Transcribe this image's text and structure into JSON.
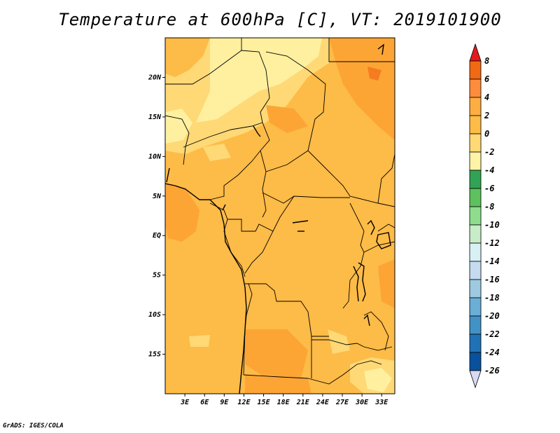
{
  "title": "Temperature at 600hPa [C], VT: 2019101900",
  "credit": "GrADS: IGES/COLA",
  "map": {
    "lon_range": [
      0,
      35
    ],
    "lat_range": [
      -20,
      25
    ],
    "lat_ticks": [
      {
        "value": 20,
        "label": "20N"
      },
      {
        "value": 15,
        "label": "15N"
      },
      {
        "value": 10,
        "label": "10N"
      },
      {
        "value": 5,
        "label": "5N"
      },
      {
        "value": 0,
        "label": "EQ"
      },
      {
        "value": -5,
        "label": "5S"
      },
      {
        "value": -10,
        "label": "10S"
      },
      {
        "value": -15,
        "label": "15S"
      }
    ],
    "lon_ticks": [
      {
        "value": 3,
        "label": "3E"
      },
      {
        "value": 6,
        "label": "6E"
      },
      {
        "value": 9,
        "label": "9E"
      },
      {
        "value": 12,
        "label": "12E"
      },
      {
        "value": 15,
        "label": "15E"
      },
      {
        "value": 18,
        "label": "18E"
      },
      {
        "value": 21,
        "label": "21E"
      },
      {
        "value": 24,
        "label": "24E"
      },
      {
        "value": 27,
        "label": "27E"
      },
      {
        "value": 30,
        "label": "30E"
      },
      {
        "value": 33,
        "label": "33E"
      }
    ]
  },
  "colorbar": {
    "levels": [
      "8",
      "6",
      "4",
      "2",
      "0",
      "-2",
      "-4",
      "-6",
      "-8",
      "-10",
      "-12",
      "-14",
      "-16",
      "-18",
      "-20",
      "-22",
      "-24",
      "-26"
    ],
    "colors": [
      "#d7301f",
      "#f16913",
      "#fd8d3c",
      "#fdae42",
      "#fdbb47",
      "#fed976",
      "#fff3a8",
      "#31a354",
      "#5dc25d",
      "#8ddd8d",
      "#c7ecc7",
      "#d8f0f3",
      "#c6dbef",
      "#9ecae1",
      "#6baed6",
      "#4292c6",
      "#2171b5",
      "#08519c",
      "#0d1e6b"
    ],
    "top_color": "#e31a1c",
    "bottom_color": "#d9d9f3"
  },
  "palette": {
    "base": "#fdbb47",
    "warm": "#fca535",
    "cool": "#fed976",
    "cooler": "#fff0a0",
    "hot": "#f57c20"
  }
}
